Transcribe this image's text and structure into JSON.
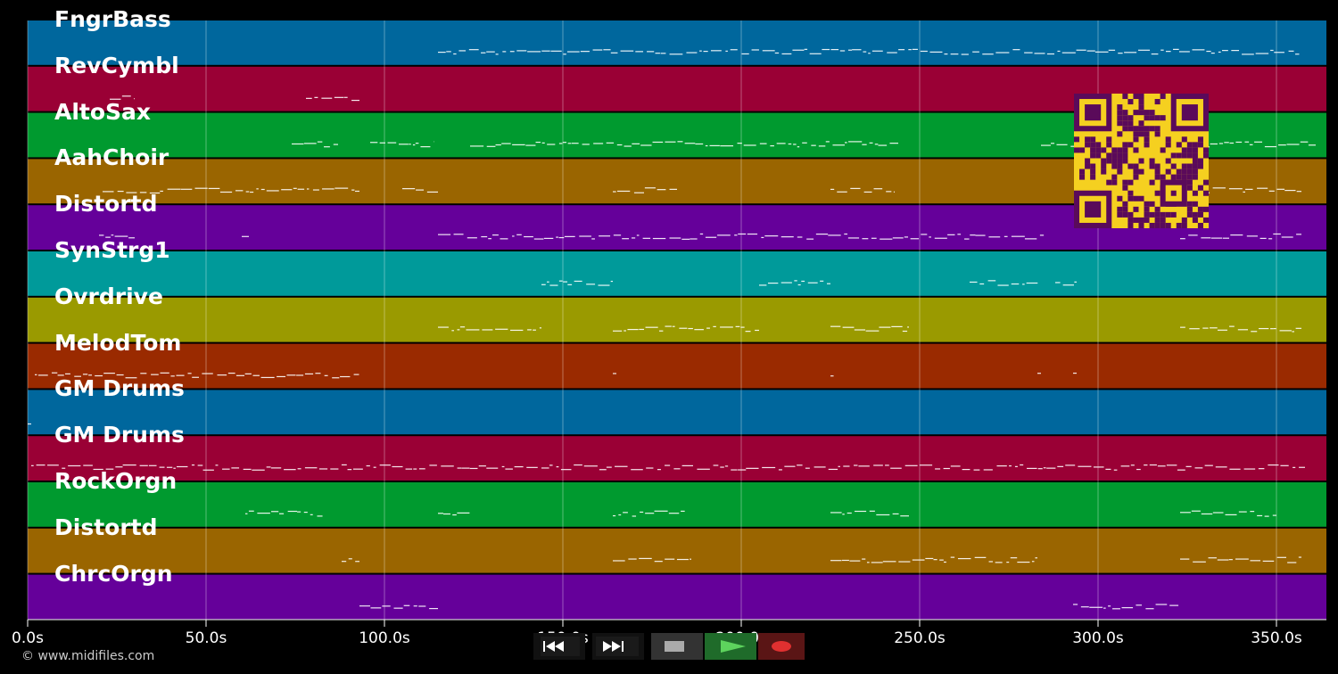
{
  "app": {
    "copyright": "© www.midifiles.com"
  },
  "timeline": {
    "ticks": [
      "0.0s",
      "50.0s",
      "100.0s",
      "150.0s",
      "200.0s",
      "250.0s",
      "300.0s",
      "350.0s"
    ],
    "tick_values": [
      0,
      50,
      100,
      150,
      200,
      250,
      300,
      350
    ],
    "duration_s": 364
  },
  "tracks": [
    {
      "name": "FngrBass",
      "color": "#00679d"
    },
    {
      "name": "RevCymbl",
      "color": "#9a0035"
    },
    {
      "name": "AltoSax",
      "color": "#009a2f"
    },
    {
      "name": "AahChoir",
      "color": "#9a6500"
    },
    {
      "name": "Distortd",
      "color": "#65009a"
    },
    {
      "name": "SynStrg1",
      "color": "#009a9a"
    },
    {
      "name": "Ovrdrive",
      "color": "#9a9a00"
    },
    {
      "name": "MelodTom",
      "color": "#9a2a00"
    },
    {
      "name": "GM Drums",
      "color": "#00679d"
    },
    {
      "name": "GM Drums",
      "color": "#9a0035"
    },
    {
      "name": "RockOrgn",
      "color": "#009a2f"
    },
    {
      "name": "Distortd",
      "color": "#9a6500"
    },
    {
      "name": "ChrcOrgn",
      "color": "#65009a"
    }
  ],
  "transport": {
    "rewind_icon": "rewind-icon",
    "fast_forward_icon": "fast-forward-icon",
    "stop_icon": "stop-icon",
    "play_icon": "play-icon",
    "record_icon": "record-icon"
  },
  "qr_code": {
    "icon": "qr-code-icon",
    "fg": "#5a0a5a",
    "bg": "#f5d020"
  }
}
